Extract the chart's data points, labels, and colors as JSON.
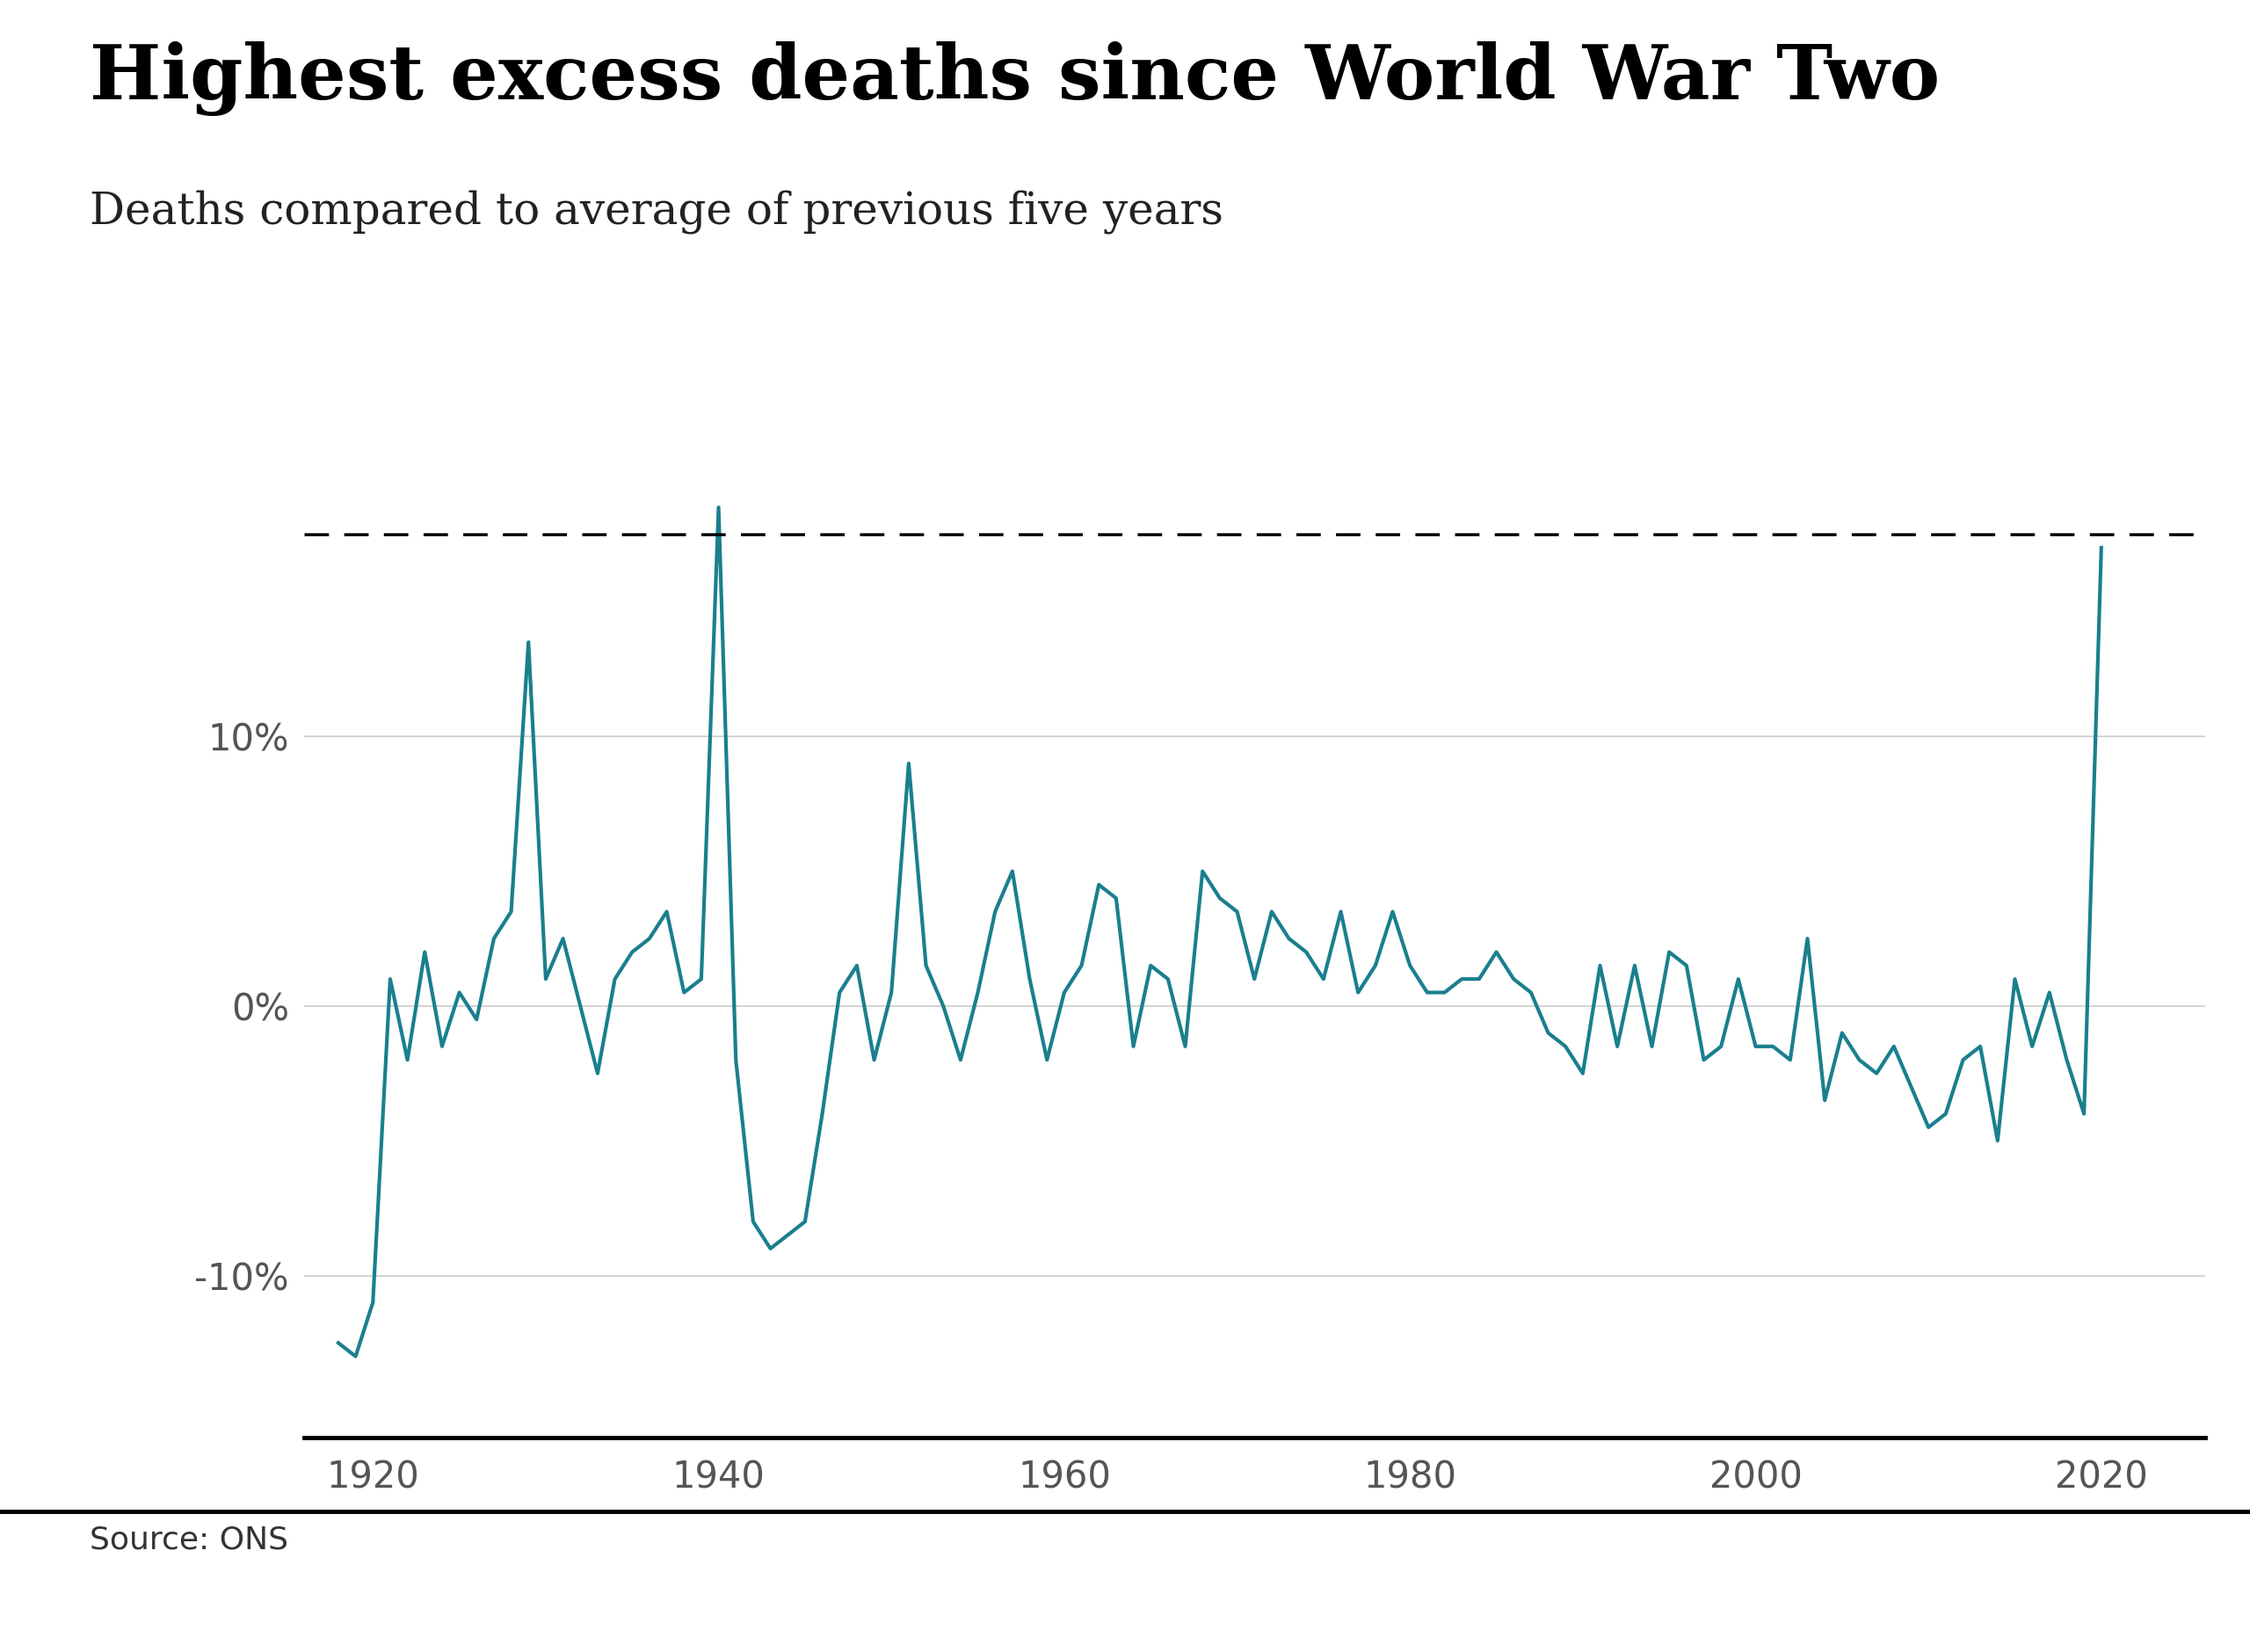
{
  "title": "Highest excess deaths since World War Two",
  "subtitle": "Deaths compared to average of previous five years",
  "source": "Source: ONS",
  "line_color": "#1a7f8e",
  "background_color": "#ffffff",
  "dashed_line_y": 17.5,
  "yticks": [
    -10,
    0,
    10
  ],
  "ytick_labels": [
    "-10%",
    "0%",
    "10%"
  ],
  "ylim": [
    -16,
    22
  ],
  "xlim": [
    1916,
    2026
  ],
  "xticks": [
    1920,
    1940,
    1960,
    1980,
    2000,
    2020
  ],
  "years": [
    1918,
    1919,
    1920,
    1921,
    1922,
    1923,
    1924,
    1925,
    1926,
    1927,
    1928,
    1929,
    1930,
    1931,
    1932,
    1933,
    1934,
    1935,
    1936,
    1937,
    1938,
    1939,
    1940,
    1941,
    1942,
    1943,
    1944,
    1945,
    1946,
    1947,
    1948,
    1949,
    1950,
    1951,
    1952,
    1953,
    1954,
    1955,
    1956,
    1957,
    1958,
    1959,
    1960,
    1961,
    1962,
    1963,
    1964,
    1965,
    1966,
    1967,
    1968,
    1969,
    1970,
    1971,
    1972,
    1973,
    1974,
    1975,
    1976,
    1977,
    1978,
    1979,
    1980,
    1981,
    1982,
    1983,
    1984,
    1985,
    1986,
    1987,
    1988,
    1989,
    1990,
    1991,
    1992,
    1993,
    1994,
    1995,
    1996,
    1997,
    1998,
    1999,
    2000,
    2001,
    2002,
    2003,
    2004,
    2005,
    2006,
    2007,
    2008,
    2009,
    2010,
    2011,
    2012,
    2013,
    2014,
    2015,
    2016,
    2017,
    2018,
    2019,
    2020
  ],
  "values": [
    -12.5,
    -13.0,
    -11.0,
    1.0,
    -2.0,
    2.0,
    -1.5,
    0.5,
    -0.5,
    2.5,
    3.5,
    13.5,
    1.0,
    2.5,
    0.0,
    -2.5,
    1.0,
    2.0,
    2.5,
    3.5,
    0.5,
    1.0,
    18.5,
    -2.0,
    -8.0,
    -9.0,
    -8.5,
    -8.0,
    -4.0,
    0.5,
    1.5,
    -2.0,
    0.5,
    9.0,
    1.5,
    0.0,
    -2.0,
    0.5,
    3.5,
    5.0,
    1.0,
    -2.0,
    0.5,
    1.5,
    4.5,
    4.0,
    -1.5,
    1.5,
    1.0,
    -1.5,
    5.0,
    4.0,
    3.5,
    1.0,
    3.5,
    2.5,
    2.0,
    1.0,
    3.5,
    0.5,
    1.5,
    3.5,
    1.5,
    0.5,
    0.5,
    1.0,
    1.0,
    2.0,
    1.0,
    0.5,
    -1.0,
    -1.5,
    -2.5,
    1.5,
    -1.5,
    1.5,
    -1.5,
    2.0,
    1.5,
    -2.0,
    -1.5,
    1.0,
    -1.5,
    -1.5,
    -2.0,
    2.5,
    -3.5,
    -1.0,
    -2.0,
    -2.5,
    -1.5,
    -3.0,
    -4.5,
    -4.0,
    -2.0,
    -1.5,
    -5.0,
    1.0,
    -1.5,
    0.5,
    -2.0,
    -4.0,
    17.0
  ],
  "title_fontsize": 62,
  "subtitle_fontsize": 36,
  "tick_fontsize": 30,
  "source_fontsize": 26
}
